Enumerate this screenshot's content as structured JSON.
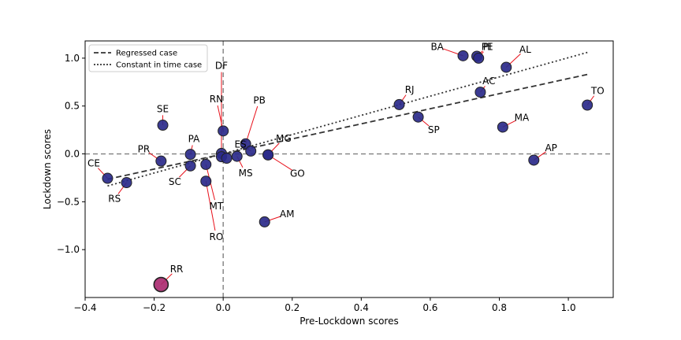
{
  "chart_data": {
    "type": "scatter",
    "xlabel": "Pre-Lockdown scores",
    "ylabel": "Lockdown scores",
    "xlim": [
      -0.4,
      1.13
    ],
    "ylim": [
      -1.5,
      1.18
    ],
    "xticks": [
      "−0.4",
      "−0.2",
      "0.0",
      "0.2",
      "0.4",
      "0.6",
      "0.8",
      "1.0"
    ],
    "xtick_values": [
      -0.4,
      -0.2,
      0.0,
      0.2,
      0.4,
      0.6,
      0.8,
      1.0
    ],
    "yticks": [
      "1.0",
      "0.5",
      "0.0",
      "−0.5",
      "−1.0"
    ],
    "ytick_values": [
      1.0,
      0.5,
      0.0,
      -0.5,
      -1.0
    ],
    "reference_lines": {
      "x": 0,
      "y": 0,
      "style": "dashed",
      "color": "#808080"
    },
    "legend": {
      "position": "upper-left",
      "entries": [
        {
          "label": "Regressed case",
          "style": "dashed",
          "color": "#333333"
        },
        {
          "label": "Constant in time case",
          "style": "dotted",
          "color": "#333333"
        }
      ]
    },
    "fits": [
      {
        "name": "Regressed case",
        "style": "dashed",
        "x": [
          -0.335,
          1.055
        ],
        "y": [
          -0.265,
          0.83
        ]
      },
      {
        "name": "Constant in time case",
        "style": "dotted",
        "x": [
          -0.335,
          1.055
        ],
        "y": [
          -0.335,
          1.06
        ]
      }
    ],
    "point_color": "#2a2a8a",
    "highlight_color": "#a8286e",
    "points": [
      {
        "label": "BA",
        "x": 0.695,
        "y": 1.025,
        "lx": 0.62,
        "ly": 1.12
      },
      {
        "label": "PE",
        "x": 0.735,
        "y": 1.02,
        "lx": 0.765,
        "ly": 1.12
      },
      {
        "label": "PI",
        "x": 0.74,
        "y": 1.0,
        "lx": 0.765,
        "ly": 1.12
      },
      {
        "label": "AL",
        "x": 0.82,
        "y": 0.905,
        "lx": 0.875,
        "ly": 1.09
      },
      {
        "label": "AC",
        "x": 0.745,
        "y": 0.645,
        "lx": 0.77,
        "ly": 0.76
      },
      {
        "label": "TO",
        "x": 1.055,
        "y": 0.51,
        "lx": 1.085,
        "ly": 0.66
      },
      {
        "label": "RJ",
        "x": 0.51,
        "y": 0.515,
        "lx": 0.54,
        "ly": 0.67
      },
      {
        "label": "SP",
        "x": 0.565,
        "y": 0.385,
        "lx": 0.61,
        "ly": 0.25
      },
      {
        "label": "MA",
        "x": 0.81,
        "y": 0.28,
        "lx": 0.865,
        "ly": 0.38
      },
      {
        "label": "AP",
        "x": 0.9,
        "y": -0.065,
        "lx": 0.95,
        "ly": 0.06
      },
      {
        "label": "DF",
        "x": -0.005,
        "y": 0.005,
        "lx": -0.005,
        "ly": 0.92
      },
      {
        "label": "SE",
        "x": -0.175,
        "y": 0.3,
        "lx": -0.175,
        "ly": 0.47
      },
      {
        "label": "RN",
        "x": 0.0,
        "y": 0.24,
        "lx": -0.02,
        "ly": 0.57
      },
      {
        "label": "PB",
        "x": 0.065,
        "y": 0.105,
        "lx": 0.105,
        "ly": 0.56
      },
      {
        "label": "ES",
        "x": 0.08,
        "y": 0.03,
        "lx": 0.05,
        "ly": 0.1
      },
      {
        "label": "MG",
        "x": 0.13,
        "y": -0.01,
        "lx": 0.175,
        "ly": 0.16
      },
      {
        "label": "GO",
        "x": 0.13,
        "y": -0.01,
        "lx": 0.215,
        "ly": -0.205
      },
      {
        "label": "MS",
        "x": 0.04,
        "y": -0.025,
        "lx": 0.065,
        "ly": -0.2
      },
      {
        "label": "PA",
        "x": -0.095,
        "y": -0.005,
        "lx": -0.085,
        "ly": 0.155
      },
      {
        "label": "PR",
        "x": -0.18,
        "y": -0.075,
        "lx": -0.23,
        "ly": 0.05
      },
      {
        "label": "SC",
        "x": -0.095,
        "y": -0.125,
        "lx": -0.14,
        "ly": -0.29
      },
      {
        "label": "CE",
        "x": -0.335,
        "y": -0.255,
        "lx": -0.375,
        "ly": -0.1
      },
      {
        "label": "RS",
        "x": -0.28,
        "y": -0.3,
        "lx": -0.315,
        "ly": -0.47
      },
      {
        "label": "MT",
        "x": -0.05,
        "y": -0.11,
        "lx": -0.02,
        "ly": -0.545
      },
      {
        "label": "RO",
        "x": -0.05,
        "y": -0.285,
        "lx": -0.02,
        "ly": -0.865
      },
      {
        "label": "AM",
        "x": 0.12,
        "y": -0.71,
        "lx": 0.185,
        "ly": -0.63
      },
      {
        "label": "RR",
        "x": -0.18,
        "y": -1.365,
        "lx": -0.135,
        "ly": -1.205,
        "highlight": true
      },
      {
        "label": "",
        "x": -0.005,
        "y": -0.03
      },
      {
        "label": "",
        "x": 0.01,
        "y": -0.045
      }
    ]
  }
}
